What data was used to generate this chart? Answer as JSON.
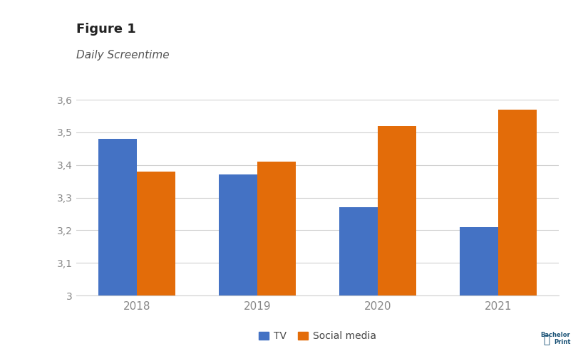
{
  "title": "Figure 1",
  "subtitle": "Daily Screentime",
  "categories": [
    "2018",
    "2019",
    "2020",
    "2021"
  ],
  "tv_values": [
    3.48,
    3.37,
    3.27,
    3.21
  ],
  "social_values": [
    3.38,
    3.41,
    3.52,
    3.57
  ],
  "bar_color_tv": "#4472c4",
  "bar_color_social": "#e36c09",
  "ylim": [
    3.0,
    3.6
  ],
  "yticks": [
    3.0,
    3.1,
    3.2,
    3.3,
    3.4,
    3.5,
    3.6
  ],
  "ytick_labels": [
    "3",
    "3,1",
    "3,2",
    "3,3",
    "3,4",
    "3,5",
    "3,6"
  ],
  "legend_tv": "TV",
  "legend_social": "Social media",
  "background_color": "#ffffff",
  "bar_width": 0.32,
  "title_fontsize": 13,
  "subtitle_fontsize": 11,
  "tick_fontsize": 10,
  "legend_fontsize": 10,
  "title_color": "#222222",
  "subtitle_color": "#555555",
  "tick_color": "#888888",
  "grid_color": "#d0d0d0",
  "bottom_spine_color": "#d0d0d0"
}
